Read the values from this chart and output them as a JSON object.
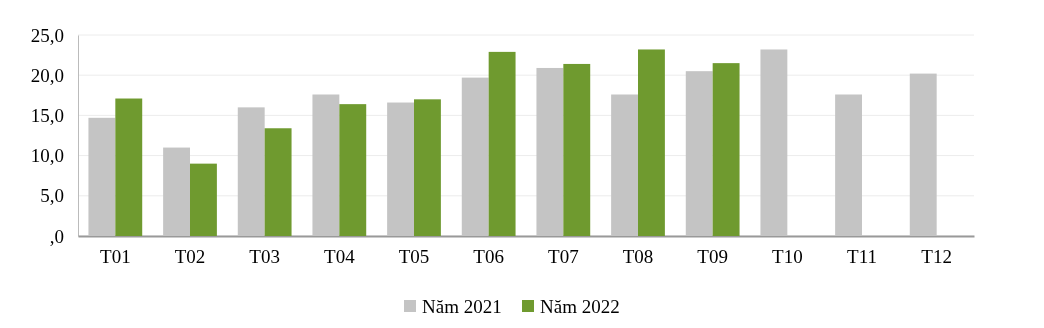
{
  "chart_data": {
    "type": "bar",
    "categories": [
      "T01",
      "T02",
      "T03",
      "T04",
      "T05",
      "T06",
      "T07",
      "T08",
      "T09",
      "T10",
      "T11",
      "T12"
    ],
    "series": [
      {
        "name": "Năm 2021",
        "color": "#c4c4c4",
        "values": [
          14.7,
          11.0,
          16.0,
          17.6,
          16.6,
          19.7,
          20.9,
          17.6,
          20.5,
          23.2,
          17.6,
          20.2
        ]
      },
      {
        "name": "Năm 2022",
        "color": "#6f9a2f",
        "values": [
          17.1,
          9.0,
          13.4,
          16.4,
          17.0,
          22.9,
          21.4,
          23.2,
          21.5,
          null,
          null,
          null
        ]
      }
    ],
    "ylim": [
      0,
      25
    ],
    "yticks": [
      {
        "value": 0,
        "label": ",0"
      },
      {
        "value": 5,
        "label": "5,0"
      },
      {
        "value": 10,
        "label": "10,0"
      },
      {
        "value": 15,
        "label": "15,0"
      },
      {
        "value": 20,
        "label": "20,0"
      },
      {
        "value": 25,
        "label": "25,0"
      }
    ],
    "grid": "y",
    "legend": "bottom"
  }
}
